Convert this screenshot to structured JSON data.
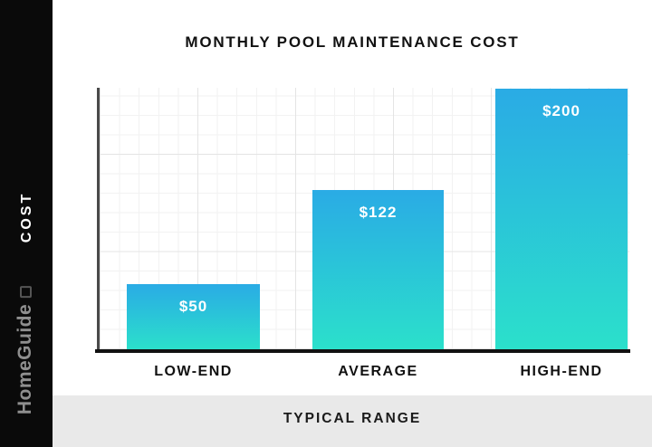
{
  "title": "MONTHLY POOL MAINTENANCE COST",
  "sidebar": {
    "vertical_label": "COST",
    "watermark": "HomeGuide"
  },
  "footer": {
    "label": "TYPICAL RANGE"
  },
  "chart_data": {
    "type": "bar",
    "categories": [
      "LOW-END",
      "AVERAGE",
      "HIGH-END"
    ],
    "values": [
      50,
      122,
      200
    ],
    "value_labels": [
      "$50",
      "$122",
      "$200"
    ],
    "title": "MONTHLY POOL MAINTENANCE COST",
    "xlabel": "TYPICAL RANGE",
    "ylabel": "COST",
    "ylim": [
      0,
      200
    ],
    "grid": true,
    "legend": false
  },
  "colors": {
    "bar_top": "#2AABE5",
    "bar_bottom": "#2BE0CB",
    "sidebar_bg": "#0A0A0A",
    "band_bg": "#E9E9E9",
    "axis": "#111111",
    "grid_minor": "#F2F2F2",
    "grid_major": "#E4E4E4",
    "watermark_text": "#8F8F8F"
  }
}
